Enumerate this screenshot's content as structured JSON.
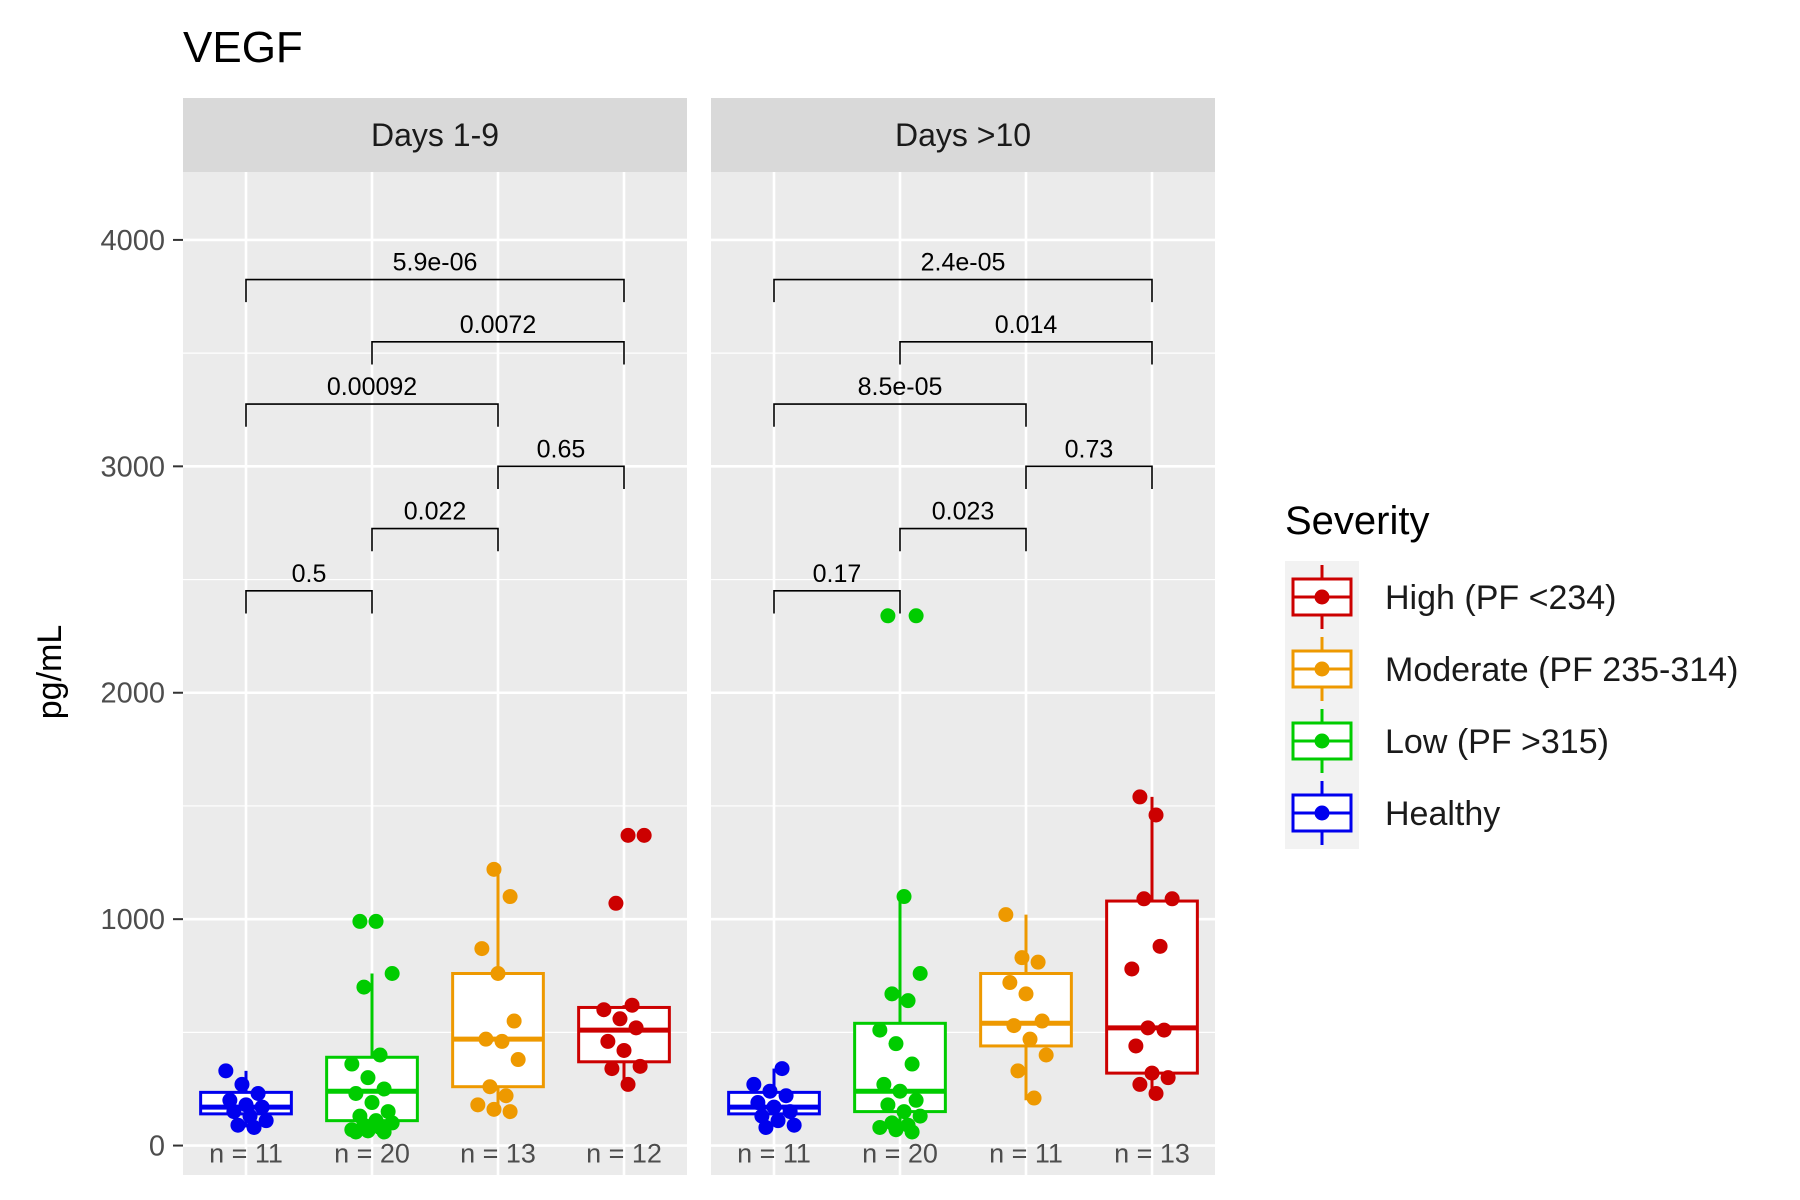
{
  "chart_data": {
    "type": "box",
    "title": "VEGF",
    "ylabel": "pg/mL",
    "xlabel": "",
    "ylim": [
      -130,
      4300
    ],
    "yticks": [
      0,
      1000,
      2000,
      3000,
      4000
    ],
    "grid": true,
    "legend": {
      "title": "Severity",
      "position": "right",
      "entries": [
        {
          "label": "High (PF <234)",
          "color": "#cc0000"
        },
        {
          "label": "Moderate (PF 235-314)",
          "color": "#ee9900"
        },
        {
          "label": "Low (PF >315)",
          "color": "#00cc00"
        },
        {
          "label": "Healthy",
          "color": "#0000ee"
        }
      ]
    },
    "groups": [
      "Healthy",
      "Low",
      "Moderate",
      "High"
    ],
    "group_colors": [
      "#0000ee",
      "#00cc00",
      "#ee9900",
      "#cc0000"
    ],
    "panels": [
      {
        "label": "Days 1-9",
        "boxes": [
          {
            "min": 80,
            "q1": 140,
            "median": 170,
            "q3": 235,
            "max": 330
          },
          {
            "min": 60,
            "q1": 110,
            "median": 240,
            "q3": 390,
            "max": 760
          },
          {
            "min": 150,
            "q1": 260,
            "median": 470,
            "q3": 760,
            "max": 1220
          },
          {
            "min": 270,
            "q1": 370,
            "median": 510,
            "q3": 610,
            "max": 620
          }
        ],
        "points": [
          [
            330,
            270,
            230,
            200,
            180,
            170,
            150,
            130,
            110,
            90,
            80
          ],
          [
            990,
            990,
            760,
            700,
            400,
            360,
            300,
            250,
            230,
            190,
            150,
            130,
            110,
            100,
            90,
            80,
            70,
            65,
            60,
            60
          ],
          [
            1220,
            1100,
            870,
            760,
            550,
            470,
            460,
            380,
            260,
            220,
            180,
            160,
            150
          ],
          [
            1370,
            1370,
            1070,
            620,
            600,
            560,
            520,
            460,
            420,
            350,
            340,
            270
          ]
        ],
        "n_labels": [
          "n = 11",
          "n = 20",
          "n = 13",
          "n = 12"
        ],
        "comparisons": [
          {
            "from": 0,
            "to": 1,
            "y": 2450,
            "label": "0.5"
          },
          {
            "from": 1,
            "to": 2,
            "y": 2725,
            "label": "0.022"
          },
          {
            "from": 2,
            "to": 3,
            "y": 3000,
            "label": "0.65"
          },
          {
            "from": 0,
            "to": 2,
            "y": 3275,
            "label": "0.00092"
          },
          {
            "from": 1,
            "to": 3,
            "y": 3550,
            "label": "0.0072"
          },
          {
            "from": 0,
            "to": 3,
            "y": 3825,
            "label": "5.9e-06"
          }
        ]
      },
      {
        "label": "Days >10",
        "boxes": [
          {
            "min": 90,
            "q1": 140,
            "median": 170,
            "q3": 235,
            "max": 340
          },
          {
            "min": 60,
            "q1": 150,
            "median": 240,
            "q3": 540,
            "max": 1100
          },
          {
            "min": 200,
            "q1": 440,
            "median": 540,
            "q3": 760,
            "max": 1020
          },
          {
            "min": 230,
            "q1": 320,
            "median": 520,
            "q3": 1080,
            "max": 1540
          }
        ],
        "points": [
          [
            340,
            270,
            240,
            220,
            190,
            170,
            150,
            130,
            110,
            90,
            80
          ],
          [
            2340,
            2340,
            1100,
            760,
            670,
            640,
            510,
            450,
            360,
            270,
            240,
            200,
            180,
            150,
            130,
            100,
            90,
            80,
            70,
            60
          ],
          [
            1020,
            830,
            810,
            720,
            670,
            550,
            530,
            470,
            400,
            330,
            210
          ],
          [
            1540,
            1460,
            1090,
            1090,
            880,
            780,
            520,
            510,
            440,
            320,
            300,
            270,
            230
          ]
        ],
        "n_labels": [
          "n = 11",
          "n = 20",
          "n = 11",
          "n = 13"
        ],
        "comparisons": [
          {
            "from": 0,
            "to": 1,
            "y": 2450,
            "label": "0.17"
          },
          {
            "from": 1,
            "to": 2,
            "y": 2725,
            "label": "0.023"
          },
          {
            "from": 2,
            "to": 3,
            "y": 3000,
            "label": "0.73"
          },
          {
            "from": 0,
            "to": 2,
            "y": 3275,
            "label": "8.5e-05"
          },
          {
            "from": 1,
            "to": 3,
            "y": 3550,
            "label": "0.014"
          },
          {
            "from": 0,
            "to": 3,
            "y": 3825,
            "label": "2.4e-05"
          }
        ]
      }
    ]
  }
}
